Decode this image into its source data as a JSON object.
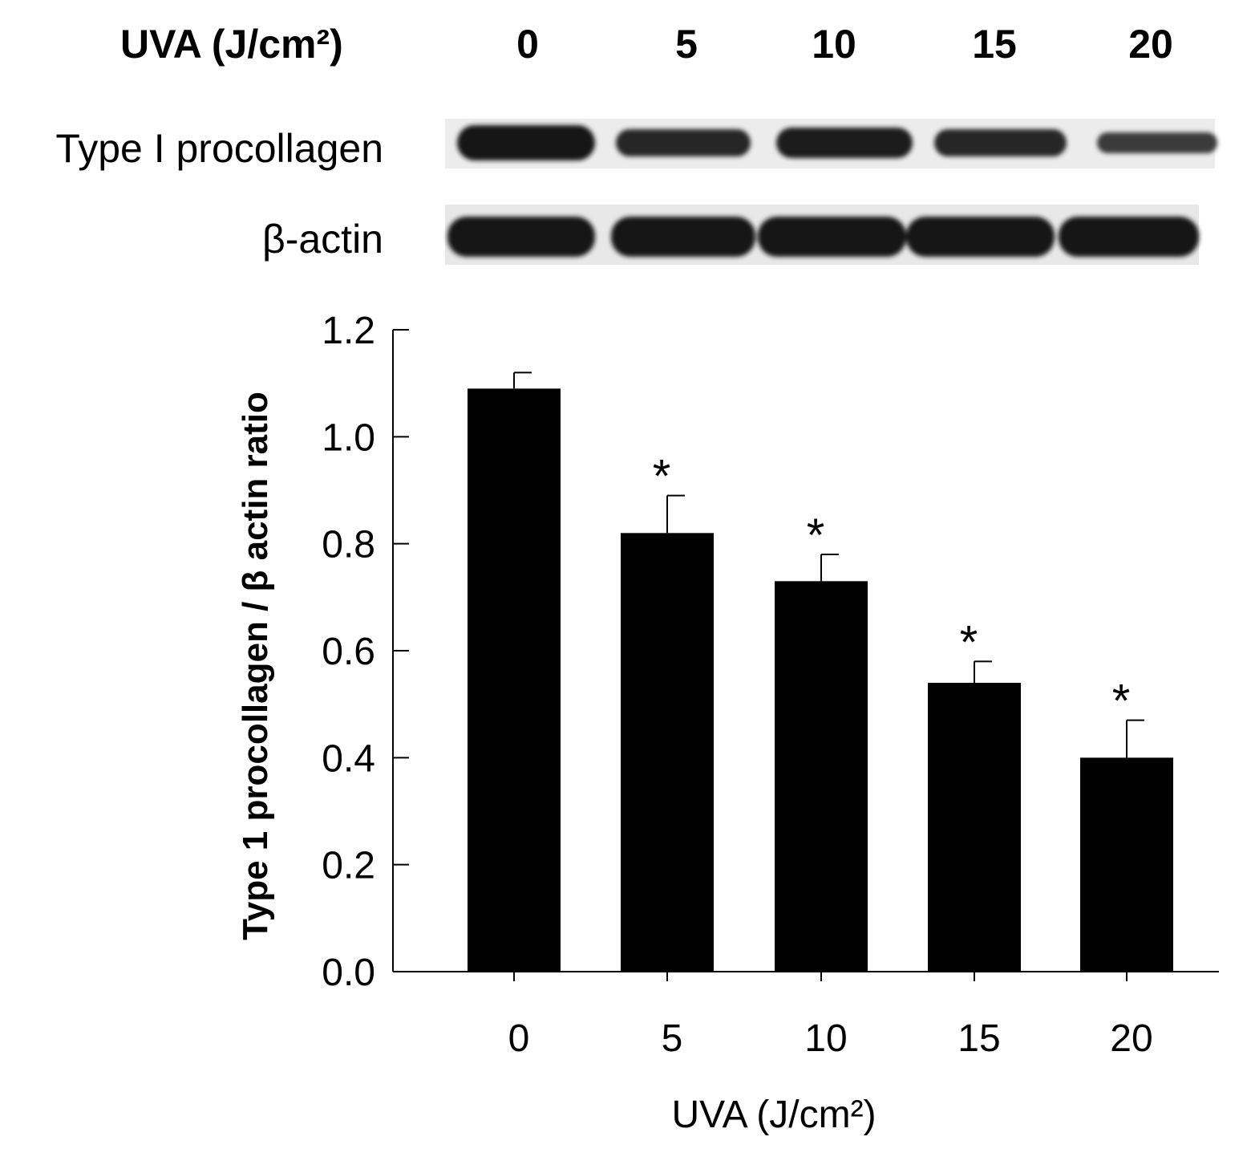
{
  "blot": {
    "header_label": "UVA (J/cm²)",
    "lanes": [
      "0",
      "5",
      "10",
      "15",
      "20"
    ],
    "rows": [
      {
        "label": "Type I procollagen"
      },
      {
        "label": "β-actin"
      }
    ]
  },
  "chart_data": {
    "type": "bar",
    "categories": [
      "0",
      "5",
      "10",
      "15",
      "20"
    ],
    "values": [
      1.09,
      0.82,
      0.73,
      0.54,
      0.4
    ],
    "error": [
      0.03,
      0.07,
      0.05,
      0.04,
      0.07
    ],
    "significance": [
      "",
      "*",
      "*",
      "*",
      "*"
    ],
    "xlabel": "UVA (J/cm²)",
    "ylabel": "Type 1 procollagen / β actin ratio",
    "ylim": [
      0,
      1.2
    ],
    "yticks": [
      0.0,
      0.2,
      0.4,
      0.6,
      0.8,
      1.0,
      1.2
    ],
    "ytick_labels": [
      "0.0",
      "0.2",
      "0.4",
      "0.6",
      "0.8",
      "1.0",
      "1.2"
    ],
    "bar_color": "#000000",
    "grid": false,
    "legend": "none"
  }
}
